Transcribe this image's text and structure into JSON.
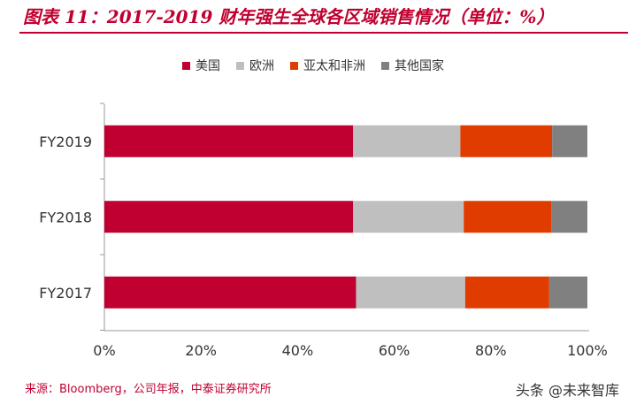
{
  "header": {
    "title": "图表 11：2017-2019 财年强生全球各区域销售情况（单位：%）"
  },
  "footer": {
    "source": "来源：Bloomberg，公司年报，中泰证券研究所",
    "watermark": "头条 @未来智库"
  },
  "chart_data": {
    "type": "bar",
    "orientation": "horizontal",
    "stacked": true,
    "categories": [
      "FY2019",
      "FY2018",
      "FY2017"
    ],
    "series": [
      {
        "name": "美国",
        "color": "#c00030",
        "values": [
          51.5,
          51.5,
          52.1
        ]
      },
      {
        "name": "欧洲",
        "color": "#bfbfbf",
        "values": [
          22.2,
          22.9,
          22.6
        ]
      },
      {
        "name": "亚太和非洲",
        "color": "#e03c00",
        "values": [
          19.0,
          18.1,
          17.4
        ]
      },
      {
        "name": "其他国家",
        "color": "#808080",
        "values": [
          7.3,
          7.5,
          7.9
        ]
      }
    ],
    "xlim": [
      0,
      100
    ],
    "xticks": [
      "0%",
      "20%",
      "40%",
      "60%",
      "80%",
      "100%"
    ],
    "grid": false,
    "legend_position": "top"
  }
}
